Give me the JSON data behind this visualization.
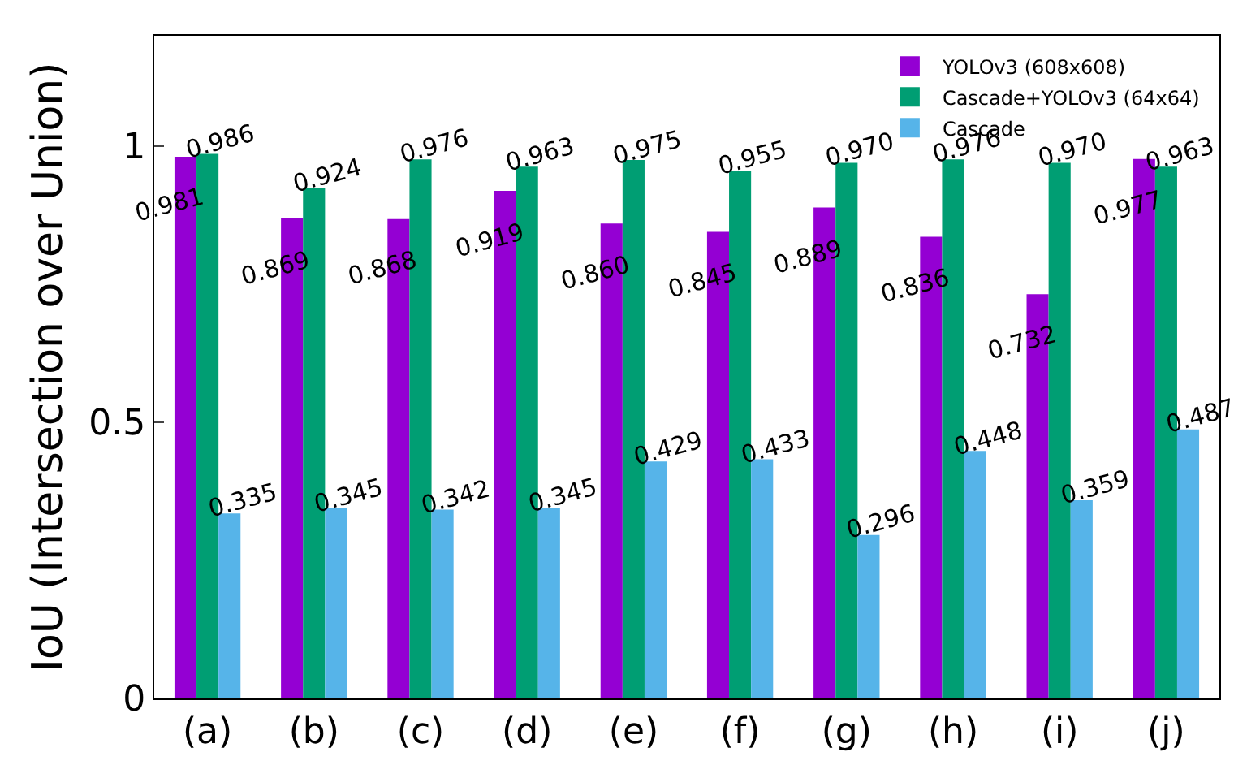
{
  "chart_data": {
    "type": "bar",
    "ylabel": "IoU (Intersection over Union)",
    "categories": [
      "(a)",
      "(b)",
      "(c)",
      "(d)",
      "(e)",
      "(f)",
      "(g)",
      "(h)",
      "(i)",
      "(j)"
    ],
    "series": [
      {
        "name": "YOLOv3 (608x608)",
        "color": "#9400d3",
        "values": [
          0.981,
          0.869,
          0.868,
          0.919,
          0.86,
          0.845,
          0.889,
          0.836,
          0.732,
          0.977
        ],
        "value_labels": [
          "0.981",
          "0.869",
          "0.868",
          "0.919",
          "0.860",
          "0.845",
          "0.889",
          "0.836",
          "0.732",
          "0.977"
        ]
      },
      {
        "name": "Cascade+YOLOv3 (64x64)",
        "color": "#009e73",
        "values": [
          0.986,
          0.924,
          0.976,
          0.963,
          0.975,
          0.955,
          0.97,
          0.976,
          0.97,
          0.963
        ],
        "value_labels": [
          "0.986",
          "0.924",
          "0.976",
          "0.963",
          "0.975",
          "0.955",
          "0.970",
          "0.976",
          "0.970",
          "0.963"
        ]
      },
      {
        "name": "Cascade",
        "color": "#56b4e9",
        "values": [
          0.335,
          0.345,
          0.342,
          0.345,
          0.429,
          0.433,
          0.296,
          0.448,
          0.359,
          0.487
        ],
        "value_labels": [
          "0.335",
          "0.345",
          "0.342",
          "0.345",
          "0.429",
          "0.433",
          "0.296",
          "0.448",
          "0.359",
          "0.487"
        ]
      }
    ],
    "ylim": [
      0,
      1.2
    ],
    "yticks": [
      0,
      0.5,
      1
    ],
    "legend": "top right"
  }
}
